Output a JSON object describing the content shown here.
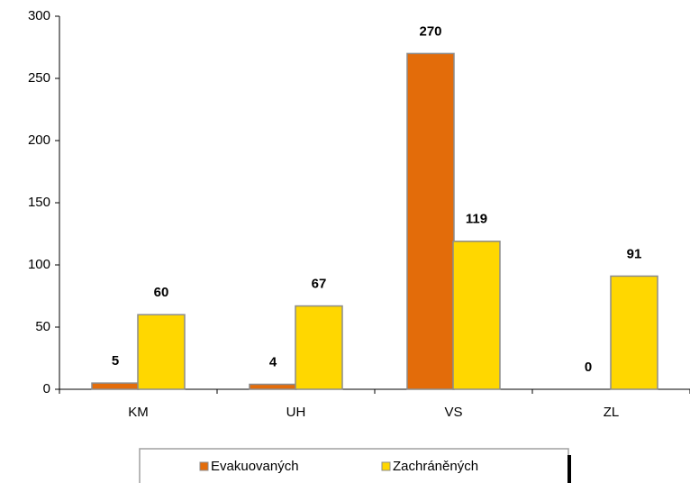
{
  "chart_data": {
    "type": "bar",
    "categories": [
      "KM",
      "UH",
      "VS",
      "ZL"
    ],
    "series": [
      {
        "name": "Evakuovaných",
        "color": "#e36c0a",
        "values": [
          5,
          4,
          270,
          0
        ]
      },
      {
        "name": "Zachráněných",
        "color": "#ffd700",
        "values": [
          60,
          67,
          119,
          91
        ]
      }
    ],
    "ylim": [
      0,
      300
    ],
    "yticks": [
      0,
      50,
      100,
      150,
      200,
      250,
      300
    ],
    "grid": false,
    "legend": "bottom"
  }
}
